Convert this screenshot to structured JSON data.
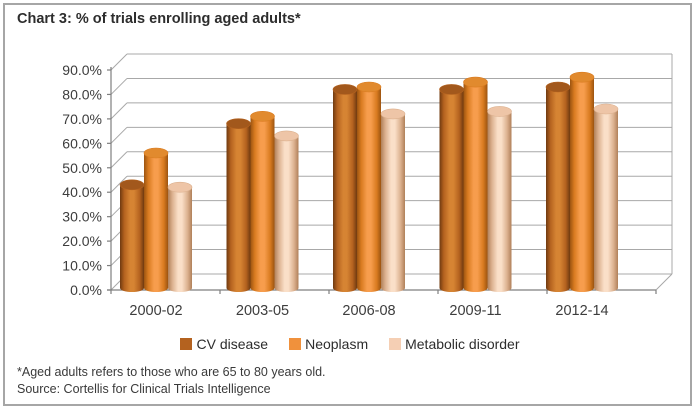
{
  "chart_data": {
    "type": "bar",
    "style": "3d-cylinder-clustered",
    "title": "Chart 3: % of trials enrolling aged adults*",
    "categories": [
      "2000-02",
      "2003-05",
      "2006-08",
      "2009-11",
      "2012-14"
    ],
    "series": [
      {
        "name": "CV disease",
        "color": "#b4621f",
        "body_dark": "#6f3a10",
        "body_mid": "#b4621f",
        "body_light": "#d68433",
        "top_color": "#a2581c",
        "values": [
          41,
          66,
          80,
          80,
          81
        ]
      },
      {
        "name": "Neoplasm",
        "color": "#f0913c",
        "body_dark": "#9c5410",
        "body_mid": "#d97b20",
        "body_light": "#f79d4d",
        "top_color": "#e18a2e",
        "values": [
          54,
          69,
          81,
          83,
          85
        ]
      },
      {
        "name": "Metabolic disorder",
        "color": "#f5cfb4",
        "body_dark": "#b08059",
        "body_mid": "#dbb08e",
        "body_light": "#fadfc8",
        "top_color": "#eec5a7",
        "values": [
          40,
          61,
          70,
          71,
          72
        ]
      }
    ],
    "ylim": [
      0,
      90
    ],
    "ytick_labels": [
      "0.0%",
      "10.0%",
      "20.0%",
      "30.0%",
      "40.0%",
      "50.0%",
      "60.0%",
      "70.0%",
      "80.0%",
      "90.0%"
    ],
    "xlabel": "",
    "ylabel": "",
    "grid": true,
    "legend_position": "bottom",
    "footnote": "*Aged adults refers to those who are 65 to 80 years old.",
    "source": "Source: Cortellis for Clinical Trials Intelligence",
    "colors": {
      "axis": "#7f7f7f",
      "gridline": "#a8a8a8",
      "text": "#3d3d3d"
    }
  }
}
